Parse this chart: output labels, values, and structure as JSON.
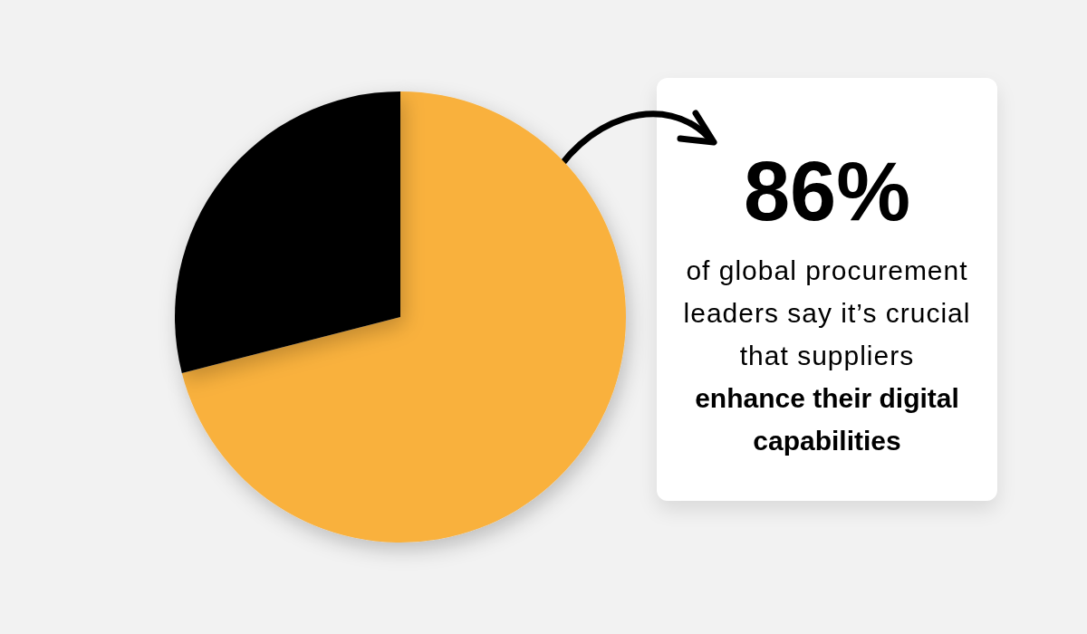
{
  "chart_data": {
    "type": "pie",
    "categories": [
      null,
      null
    ],
    "values": [
      71,
      29
    ],
    "colors": [
      "#f9b13e",
      "#000000"
    ],
    "annotations": [
      "86%",
      "of global procurement leaders say it’s crucial that suppliers",
      "enhance their digital capabilities"
    ]
  }
}
